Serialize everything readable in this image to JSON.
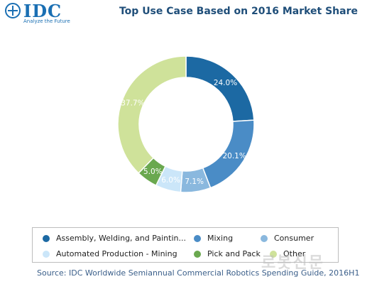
{
  "logo": {
    "name": "IDC",
    "tagline": "Analyze the Future"
  },
  "chart_data": {
    "type": "pie",
    "title": "Top Use Case Based on 2016 Market Share",
    "donut": true,
    "legend_position": "bottom",
    "categories": [
      "Assembly, Welding, and Paintin...",
      "Mixing",
      "Consumer",
      "Automated Production - Mining",
      "Pick and Pack",
      "Other"
    ],
    "values": [
      24.0,
      20.1,
      7.1,
      6.0,
      5.0,
      37.7
    ],
    "value_labels": [
      "24.0%",
      "20.1%",
      "7.1%",
      "6.0%",
      "5.0%",
      "37.7%"
    ],
    "colors": [
      "#1c69a3",
      "#4a8cc6",
      "#8ab8de",
      "#cbe6f9",
      "#6aa84f",
      "#cfe29a"
    ],
    "label_colors": [
      "#ffffff",
      "#ffffff",
      "#ffffff",
      "#ffffff",
      "#ffffff",
      "#ffffff"
    ]
  },
  "source": "Source: IDC Worldwide Semiannual Commercial Robotics Spending Guide, 2016H1",
  "watermark": "로봇신문"
}
